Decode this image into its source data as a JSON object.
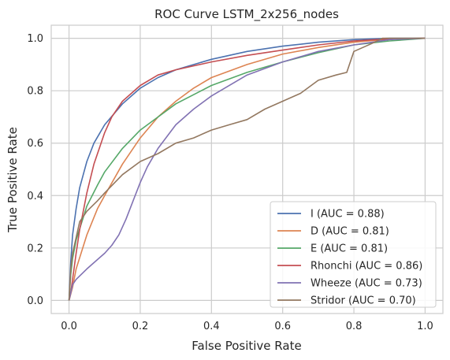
{
  "chart_data": {
    "type": "line",
    "title": "ROC Curve LSTM_2x256_nodes",
    "xlabel": "False Positive Rate",
    "ylabel": "True Positive Rate",
    "xlim": [
      -0.05,
      1.05
    ],
    "ylim": [
      -0.05,
      1.05
    ],
    "xticks": [
      "0.0",
      "0.2",
      "0.4",
      "0.6",
      "0.8",
      "1.0"
    ],
    "yticks": [
      "0.0",
      "0.2",
      "0.4",
      "0.6",
      "0.8",
      "1.0"
    ],
    "grid": true,
    "legend_position": "lower-right",
    "series": [
      {
        "name": "I (AUC = 0.88)",
        "color": "#4c72b0",
        "x": [
          0,
          0.005,
          0.01,
          0.02,
          0.03,
          0.05,
          0.07,
          0.1,
          0.15,
          0.2,
          0.25,
          0.3,
          0.4,
          0.5,
          0.6,
          0.7,
          0.8,
          0.9,
          1.0
        ],
        "y": [
          0,
          0.15,
          0.25,
          0.35,
          0.43,
          0.53,
          0.6,
          0.67,
          0.75,
          0.81,
          0.85,
          0.88,
          0.92,
          0.95,
          0.97,
          0.985,
          0.995,
          1.0,
          1.0
        ]
      },
      {
        "name": "D (AUC = 0.81)",
        "color": "#dd8452",
        "x": [
          0,
          0.01,
          0.02,
          0.05,
          0.08,
          0.1,
          0.15,
          0.2,
          0.25,
          0.3,
          0.35,
          0.4,
          0.5,
          0.6,
          0.7,
          0.8,
          0.9,
          1.0
        ],
        "y": [
          0,
          0.05,
          0.12,
          0.25,
          0.35,
          0.4,
          0.52,
          0.62,
          0.7,
          0.76,
          0.81,
          0.85,
          0.9,
          0.94,
          0.965,
          0.985,
          0.997,
          1.0
        ]
      },
      {
        "name": "E (AUC = 0.81)",
        "color": "#55a868",
        "x": [
          0,
          0.005,
          0.01,
          0.02,
          0.05,
          0.08,
          0.1,
          0.15,
          0.2,
          0.25,
          0.3,
          0.4,
          0.5,
          0.6,
          0.7,
          0.8,
          0.9,
          1.0
        ],
        "y": [
          0,
          0.1,
          0.16,
          0.23,
          0.36,
          0.44,
          0.49,
          0.58,
          0.65,
          0.7,
          0.75,
          0.82,
          0.87,
          0.91,
          0.945,
          0.975,
          0.99,
          1.0
        ]
      },
      {
        "name": "Rhonchi (AUC = 0.86)",
        "color": "#c44e52",
        "x": [
          0,
          0.005,
          0.01,
          0.02,
          0.03,
          0.05,
          0.07,
          0.1,
          0.12,
          0.15,
          0.2,
          0.25,
          0.3,
          0.4,
          0.5,
          0.6,
          0.7,
          0.8,
          0.9,
          1.0
        ],
        "y": [
          0,
          0.03,
          0.08,
          0.18,
          0.27,
          0.41,
          0.52,
          0.64,
          0.7,
          0.76,
          0.82,
          0.86,
          0.88,
          0.91,
          0.935,
          0.955,
          0.975,
          0.99,
          0.998,
          1.0
        ]
      },
      {
        "name": "Wheeze (AUC = 0.73)",
        "color": "#8172b3",
        "x": [
          0,
          0.01,
          0.02,
          0.05,
          0.1,
          0.12,
          0.14,
          0.16,
          0.18,
          0.2,
          0.22,
          0.25,
          0.3,
          0.35,
          0.4,
          0.5,
          0.6,
          0.7,
          0.8,
          0.9,
          1.0
        ],
        "y": [
          0,
          0.06,
          0.08,
          0.12,
          0.18,
          0.21,
          0.25,
          0.31,
          0.38,
          0.45,
          0.51,
          0.58,
          0.67,
          0.73,
          0.78,
          0.86,
          0.91,
          0.95,
          0.975,
          0.995,
          1.0
        ]
      },
      {
        "name": "Stridor (AUC = 0.70)",
        "color": "#937860",
        "x": [
          0,
          0.005,
          0.01,
          0.02,
          0.03,
          0.05,
          0.08,
          0.1,
          0.15,
          0.2,
          0.25,
          0.3,
          0.35,
          0.4,
          0.45,
          0.5,
          0.55,
          0.6,
          0.65,
          0.7,
          0.75,
          0.78,
          0.8,
          0.85,
          0.88,
          0.9,
          0.95,
          1.0
        ],
        "y": [
          0,
          0.12,
          0.18,
          0.24,
          0.3,
          0.34,
          0.38,
          0.41,
          0.48,
          0.53,
          0.56,
          0.6,
          0.62,
          0.65,
          0.67,
          0.69,
          0.73,
          0.76,
          0.79,
          0.84,
          0.86,
          0.87,
          0.95,
          0.98,
          1.0,
          1.0,
          1.0,
          1.0
        ]
      }
    ]
  }
}
